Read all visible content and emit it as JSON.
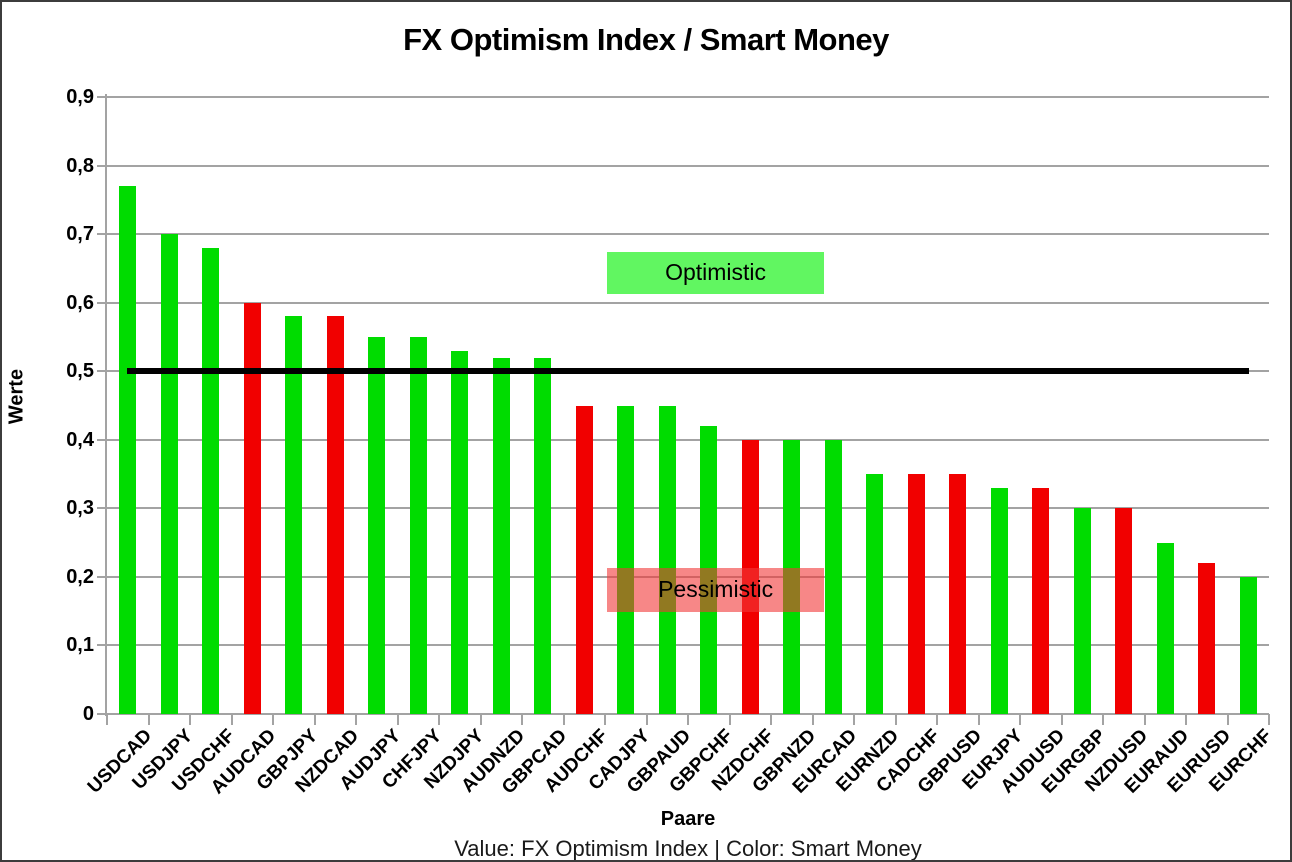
{
  "chart_data": {
    "type": "bar",
    "title": "FX Optimism Index / Smart Money",
    "xlabel": "Paare",
    "ylabel": "Werte",
    "caption": "Value: FX Optimism Index | Color: Smart Money",
    "ylim": [
      0,
      0.9
    ],
    "yticks": [
      0,
      0.1,
      0.2,
      0.3,
      0.4,
      0.5,
      0.6,
      0.7,
      0.8,
      0.9
    ],
    "ytick_labels": [
      "0",
      "0,1",
      "0,2",
      "0,3",
      "0,4",
      "0,5",
      "0,6",
      "0,7",
      "0,8",
      "0,9"
    ],
    "grid": true,
    "categories": [
      "USDCAD",
      "USDJPY",
      "USDCHF",
      "AUDCAD",
      "GBPJPY",
      "NZDCAD",
      "AUDJPY",
      "CHFJPY",
      "NZDJPY",
      "AUDNZD",
      "GBPCAD",
      "AUDCHF",
      "CADJPY",
      "GBPAUD",
      "GBPCHF",
      "NZDCHF",
      "GBPNZD",
      "EURCAD",
      "EURNZD",
      "CADCHF",
      "GBPUSD",
      "EURJPY",
      "AUDUSD",
      "EURGBP",
      "NZDUSD",
      "EURAUD",
      "EURUSD",
      "EURCHF"
    ],
    "values": [
      0.77,
      0.7,
      0.68,
      0.6,
      0.58,
      0.58,
      0.55,
      0.55,
      0.53,
      0.52,
      0.52,
      0.45,
      0.45,
      0.45,
      0.42,
      0.4,
      0.4,
      0.4,
      0.35,
      0.35,
      0.35,
      0.33,
      0.33,
      0.3,
      0.3,
      0.25,
      0.22,
      0.2
    ],
    "smart_money": [
      "green",
      "green",
      "green",
      "red",
      "green",
      "red",
      "green",
      "green",
      "green",
      "green",
      "green",
      "red",
      "green",
      "green",
      "green",
      "red",
      "green",
      "green",
      "green",
      "red",
      "red",
      "green",
      "red",
      "green",
      "red",
      "green",
      "red",
      "green"
    ],
    "colors": {
      "green": "#00DC00",
      "red": "#F10000"
    },
    "reference_line": {
      "value": 0.5,
      "color": "#000000",
      "x_from_idx": 0.48,
      "x_to_idx": 27.53
    },
    "annotations": [
      {
        "label": "Optimistic",
        "y_from": 0.613,
        "y_to": 0.674,
        "x_from_idx": 12.05,
        "x_to_idx": 17.28,
        "color": "rgba(0,240,0,0.62)"
      },
      {
        "label": "Pessimistic",
        "y_from": 0.149,
        "y_to": 0.213,
        "x_from_idx": 12.05,
        "x_to_idx": 17.28,
        "color": "rgba(242,55,55,0.60)"
      }
    ]
  }
}
